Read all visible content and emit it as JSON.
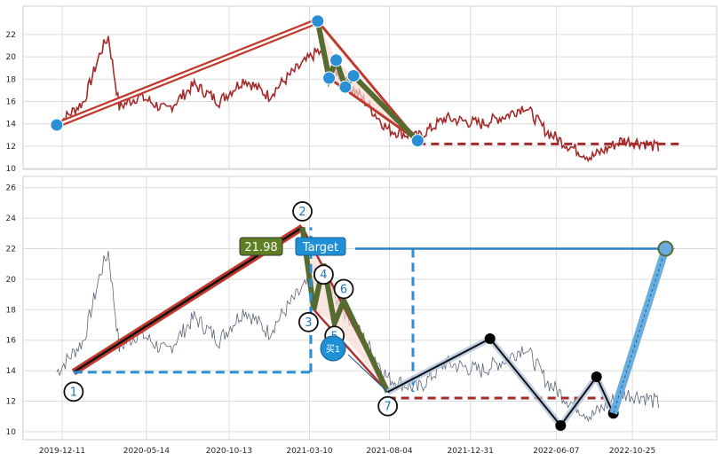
{
  "chart_data": [
    {
      "type": "line",
      "panel": "top",
      "ylim": [
        9.6,
        23.6
      ],
      "yticks": [
        10,
        12,
        14,
        16,
        18,
        20,
        22
      ],
      "grid": true,
      "price_line_color": "#a52a2a",
      "pattern_points": [
        {
          "x": "2019-12-01",
          "y": 13.9
        },
        {
          "x": "2021-03-25",
          "y": 23.2
        },
        {
          "x": "2021-04-15",
          "y": 18.1
        },
        {
          "x": "2021-04-28",
          "y": 19.7
        },
        {
          "x": "2021-05-15",
          "y": 17.3
        },
        {
          "x": "2021-05-30",
          "y": 18.3
        },
        {
          "x": "2021-09-25",
          "y": 12.5
        }
      ],
      "support_level": 12.2
    },
    {
      "type": "line",
      "panel": "bottom",
      "ylim": [
        9.5,
        26.4
      ],
      "yticks": [
        10,
        12,
        14,
        16,
        18,
        20,
        22,
        24,
        26
      ],
      "xticks": [
        "2019-12-11",
        "2020-05-14",
        "2020-10-13",
        "2021-03-10",
        "2021-08-04",
        "2021-12-31",
        "2022-06-07",
        "2022-10-25"
      ],
      "grid": true,
      "price_line_color": "#5a6478",
      "labels": {
        "price_box": "21.98",
        "target_box": "Target",
        "buy_marker": "买1"
      },
      "pivots": [
        {
          "label": "1",
          "x": "2020-01-01",
          "y": 13.9
        },
        {
          "label": "2",
          "x": "2021-02-25",
          "y": 23.4
        },
        {
          "label": "3",
          "x": "2021-03-18",
          "y": 18.0
        },
        {
          "label": "4",
          "x": "2021-04-05",
          "y": 21.0
        },
        {
          "label": "5",
          "x": "2021-04-25",
          "y": 17.1
        },
        {
          "label": "6",
          "x": "2021-05-12",
          "y": 18.6
        },
        {
          "label": "7",
          "x": "2021-08-01",
          "y": 12.6
        }
      ],
      "projection_points": [
        {
          "x": "2021-08-01",
          "y": 12.6
        },
        {
          "x": "2022-02-05",
          "y": 16.1
        },
        {
          "x": "2022-06-15",
          "y": 10.4
        },
        {
          "x": "2022-08-20",
          "y": 13.6
        },
        {
          "x": "2022-09-20",
          "y": 11.2
        }
      ],
      "target_point": {
        "x": "2022-12-25",
        "y": 22.0
      },
      "entry_level": 13.9,
      "stop_level": 12.2,
      "target_level": 22.0
    }
  ]
}
